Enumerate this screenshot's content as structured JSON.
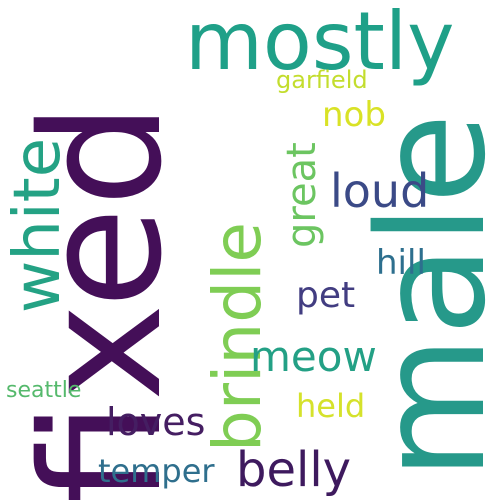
{
  "words": [
    {
      "id": "fixed",
      "text": "fixed",
      "color": "#440f58",
      "vertical": true
    },
    {
      "id": "male",
      "text": "male",
      "color": "#26998a",
      "vertical": true
    },
    {
      "id": "mostly",
      "text": "mostly",
      "color": "#1fa088",
      "vertical": false
    },
    {
      "id": "white",
      "text": "white",
      "color": "#24a284",
      "vertical": true
    },
    {
      "id": "brindle",
      "text": "brindle",
      "color": "#7fcd54",
      "vertical": true
    },
    {
      "id": "loud",
      "text": "loud",
      "color": "#3b4a87",
      "vertical": false
    },
    {
      "id": "great",
      "text": "great",
      "color": "#6cc561",
      "vertical": true
    },
    {
      "id": "garfield",
      "text": "garfield",
      "color": "#c3dd2e",
      "vertical": false
    },
    {
      "id": "nob",
      "text": "nob",
      "color": "#d9e226",
      "vertical": false
    },
    {
      "id": "hill",
      "text": "hill",
      "color": "#2d6f8e",
      "vertical": false
    },
    {
      "id": "pet",
      "text": "pet",
      "color": "#423d81",
      "vertical": false
    },
    {
      "id": "meow",
      "text": "meow",
      "color": "#23a085",
      "vertical": false
    },
    {
      "id": "held",
      "text": "held",
      "color": "#d5e22b",
      "vertical": false
    },
    {
      "id": "seattle",
      "text": "seattle",
      "color": "#55b96c",
      "vertical": false
    },
    {
      "id": "loves",
      "text": "loves",
      "color": "#451e62",
      "vertical": false
    },
    {
      "id": "temper",
      "text": "temper",
      "color": "#2f6f8d",
      "vertical": false
    },
    {
      "id": "belly",
      "text": "belly",
      "color": "#3e1a5e",
      "vertical": false
    }
  ]
}
